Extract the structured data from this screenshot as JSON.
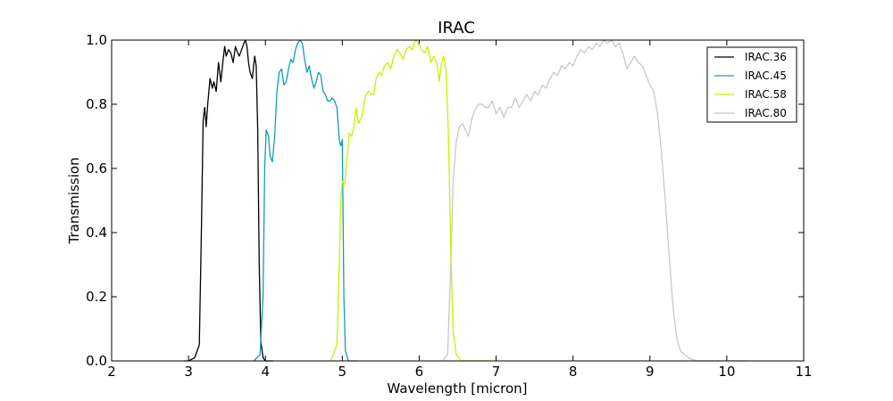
{
  "chart_data": {
    "type": "line",
    "title": "IRAC",
    "xlabel": "Wavelength [micron]",
    "ylabel": "Transmission",
    "xlim": [
      2,
      11
    ],
    "ylim": [
      0,
      1.0
    ],
    "xticks": [
      "2",
      "3",
      "4",
      "5",
      "6",
      "7",
      "8",
      "9",
      "10",
      "11"
    ],
    "yticks": [
      "0.0",
      "0.2",
      "0.4",
      "0.6",
      "0.8",
      "1.0"
    ],
    "grid": false,
    "legend_position": "top-right",
    "series": [
      {
        "name": "IRAC.36",
        "color": "#000000",
        "points": [
          [
            2.95,
            0
          ],
          [
            3.0,
            0
          ],
          [
            3.08,
            0.01
          ],
          [
            3.14,
            0.05
          ],
          [
            3.17,
            0.45
          ],
          [
            3.19,
            0.75
          ],
          [
            3.21,
            0.79
          ],
          [
            3.23,
            0.73
          ],
          [
            3.25,
            0.8
          ],
          [
            3.28,
            0.88
          ],
          [
            3.31,
            0.85
          ],
          [
            3.33,
            0.87
          ],
          [
            3.36,
            0.84
          ],
          [
            3.39,
            0.93
          ],
          [
            3.42,
            0.87
          ],
          [
            3.45,
            0.94
          ],
          [
            3.47,
            0.98
          ],
          [
            3.49,
            0.95
          ],
          [
            3.52,
            0.97
          ],
          [
            3.55,
            0.96
          ],
          [
            3.58,
            0.93
          ],
          [
            3.61,
            0.98
          ],
          [
            3.64,
            0.96
          ],
          [
            3.66,
            0.95
          ],
          [
            3.69,
            0.97
          ],
          [
            3.72,
            0.99
          ],
          [
            3.74,
            1.0
          ],
          [
            3.76,
            0.98
          ],
          [
            3.78,
            0.93
          ],
          [
            3.8,
            0.9
          ],
          [
            3.83,
            0.88
          ],
          [
            3.86,
            0.95
          ],
          [
            3.88,
            0.92
          ],
          [
            3.9,
            0.72
          ],
          [
            3.92,
            0.3
          ],
          [
            3.94,
            0.06
          ],
          [
            3.97,
            0.01
          ],
          [
            4.0,
            0.0
          ],
          [
            4.1,
            0.0
          ]
        ]
      },
      {
        "name": "IRAC.45",
        "color": "#0fa0b4",
        "points": [
          [
            3.85,
            0
          ],
          [
            3.93,
            0.02
          ],
          [
            3.97,
            0.2
          ],
          [
            3.99,
            0.6
          ],
          [
            4.01,
            0.72
          ],
          [
            4.04,
            0.7
          ],
          [
            4.06,
            0.64
          ],
          [
            4.09,
            0.62
          ],
          [
            4.12,
            0.7
          ],
          [
            4.15,
            0.84
          ],
          [
            4.18,
            0.9
          ],
          [
            4.21,
            0.91
          ],
          [
            4.24,
            0.86
          ],
          [
            4.27,
            0.87
          ],
          [
            4.3,
            0.91
          ],
          [
            4.33,
            0.94
          ],
          [
            4.36,
            0.93
          ],
          [
            4.39,
            0.97
          ],
          [
            4.42,
            0.99
          ],
          [
            4.45,
            1.0
          ],
          [
            4.48,
            0.99
          ],
          [
            4.51,
            0.94
          ],
          [
            4.54,
            0.9
          ],
          [
            4.57,
            0.92
          ],
          [
            4.6,
            0.88
          ],
          [
            4.63,
            0.85
          ],
          [
            4.66,
            0.87
          ],
          [
            4.69,
            0.9
          ],
          [
            4.72,
            0.89
          ],
          [
            4.75,
            0.84
          ],
          [
            4.78,
            0.83
          ],
          [
            4.81,
            0.81
          ],
          [
            4.84,
            0.81
          ],
          [
            4.87,
            0.82
          ],
          [
            4.9,
            0.81
          ],
          [
            4.93,
            0.79
          ],
          [
            4.96,
            0.69
          ],
          [
            4.98,
            0.67
          ],
          [
            5.0,
            0.69
          ],
          [
            5.02,
            0.2
          ],
          [
            5.04,
            0.03
          ],
          [
            5.08,
            0.0
          ],
          [
            5.2,
            0.0
          ]
        ]
      },
      {
        "name": "IRAC.58",
        "color": "#c8f000",
        "points": [
          [
            4.85,
            0
          ],
          [
            4.93,
            0.05
          ],
          [
            4.96,
            0.3
          ],
          [
            4.98,
            0.5
          ],
          [
            5.0,
            0.56
          ],
          [
            5.03,
            0.55
          ],
          [
            5.06,
            0.63
          ],
          [
            5.09,
            0.71
          ],
          [
            5.12,
            0.7
          ],
          [
            5.15,
            0.73
          ],
          [
            5.18,
            0.79
          ],
          [
            5.21,
            0.74
          ],
          [
            5.25,
            0.76
          ],
          [
            5.28,
            0.8
          ],
          [
            5.31,
            0.83
          ],
          [
            5.34,
            0.84
          ],
          [
            5.38,
            0.83
          ],
          [
            5.41,
            0.83
          ],
          [
            5.44,
            0.88
          ],
          [
            5.48,
            0.9
          ],
          [
            5.51,
            0.89
          ],
          [
            5.55,
            0.92
          ],
          [
            5.59,
            0.93
          ],
          [
            5.63,
            0.91
          ],
          [
            5.67,
            0.95
          ],
          [
            5.71,
            0.97
          ],
          [
            5.75,
            0.96
          ],
          [
            5.79,
            0.94
          ],
          [
            5.83,
            0.97
          ],
          [
            5.87,
            0.98
          ],
          [
            5.91,
            0.97
          ],
          [
            5.95,
            1.0
          ],
          [
            5.99,
            0.99
          ],
          [
            6.03,
            0.97
          ],
          [
            6.07,
            0.96
          ],
          [
            6.11,
            0.98
          ],
          [
            6.15,
            0.93
          ],
          [
            6.19,
            0.95
          ],
          [
            6.23,
            0.93
          ],
          [
            6.26,
            0.87
          ],
          [
            6.29,
            0.93
          ],
          [
            6.32,
            0.95
          ],
          [
            6.35,
            0.9
          ],
          [
            6.38,
            0.7
          ],
          [
            6.41,
            0.35
          ],
          [
            6.44,
            0.1
          ],
          [
            6.48,
            0.02
          ],
          [
            6.55,
            0.0
          ],
          [
            6.9,
            0.0
          ]
        ]
      },
      {
        "name": "IRAC.80",
        "color": "#c8c8c8",
        "points": [
          [
            6.3,
            0
          ],
          [
            6.37,
            0.02
          ],
          [
            6.41,
            0.3
          ],
          [
            6.44,
            0.55
          ],
          [
            6.48,
            0.68
          ],
          [
            6.52,
            0.73
          ],
          [
            6.56,
            0.74
          ],
          [
            6.6,
            0.72
          ],
          [
            6.64,
            0.7
          ],
          [
            6.68,
            0.75
          ],
          [
            6.72,
            0.78
          ],
          [
            6.77,
            0.8
          ],
          [
            6.82,
            0.8
          ],
          [
            6.86,
            0.79
          ],
          [
            6.9,
            0.79
          ],
          [
            6.95,
            0.81
          ],
          [
            7.0,
            0.77
          ],
          [
            7.05,
            0.79
          ],
          [
            7.1,
            0.76
          ],
          [
            7.15,
            0.79
          ],
          [
            7.2,
            0.79
          ],
          [
            7.25,
            0.82
          ],
          [
            7.3,
            0.79
          ],
          [
            7.35,
            0.81
          ],
          [
            7.4,
            0.83
          ],
          [
            7.45,
            0.81
          ],
          [
            7.5,
            0.84
          ],
          [
            7.55,
            0.83
          ],
          [
            7.6,
            0.86
          ],
          [
            7.65,
            0.85
          ],
          [
            7.7,
            0.88
          ],
          [
            7.75,
            0.9
          ],
          [
            7.8,
            0.89
          ],
          [
            7.85,
            0.92
          ],
          [
            7.9,
            0.91
          ],
          [
            7.95,
            0.93
          ],
          [
            8.0,
            0.92
          ],
          [
            8.05,
            0.95
          ],
          [
            8.1,
            0.97
          ],
          [
            8.15,
            0.96
          ],
          [
            8.2,
            0.98
          ],
          [
            8.25,
            0.97
          ],
          [
            8.3,
            0.99
          ],
          [
            8.35,
            0.98
          ],
          [
            8.4,
            1.0
          ],
          [
            8.45,
            0.99
          ],
          [
            8.5,
            1.0
          ],
          [
            8.55,
            0.98
          ],
          [
            8.6,
            0.99
          ],
          [
            8.65,
            0.96
          ],
          [
            8.7,
            0.91
          ],
          [
            8.75,
            0.93
          ],
          [
            8.8,
            0.95
          ],
          [
            8.85,
            0.93
          ],
          [
            8.9,
            0.92
          ],
          [
            8.95,
            0.89
          ],
          [
            9.0,
            0.86
          ],
          [
            9.05,
            0.84
          ],
          [
            9.1,
            0.77
          ],
          [
            9.15,
            0.65
          ],
          [
            9.2,
            0.5
          ],
          [
            9.25,
            0.33
          ],
          [
            9.3,
            0.17
          ],
          [
            9.35,
            0.07
          ],
          [
            9.4,
            0.03
          ],
          [
            9.5,
            0.01
          ],
          [
            9.6,
            0.0
          ],
          [
            10.3,
            0.0
          ]
        ]
      }
    ]
  }
}
